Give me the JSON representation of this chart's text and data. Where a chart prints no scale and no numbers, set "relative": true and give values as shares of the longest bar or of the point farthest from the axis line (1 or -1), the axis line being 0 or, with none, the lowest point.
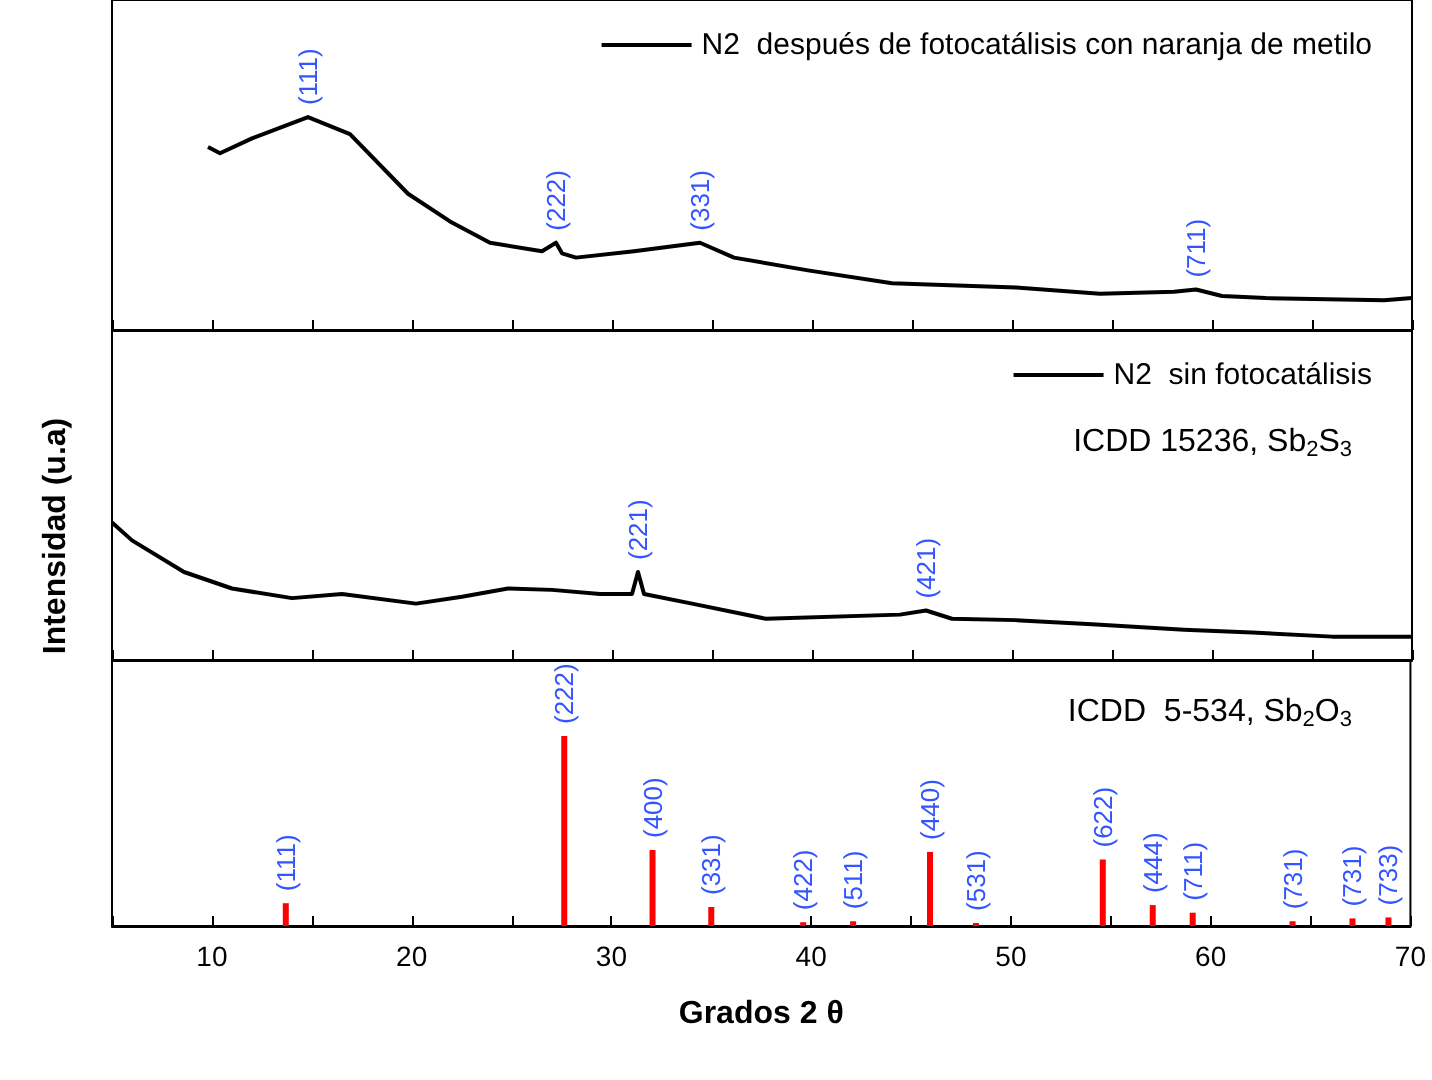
{
  "chart_data": [
    {
      "type": "line",
      "relative": true,
      "xlim": [
        5,
        70
      ],
      "xticks": [
        10,
        20,
        30,
        40,
        50,
        60,
        70
      ],
      "tick_labels": false,
      "legend": "top right",
      "x": [
        9.8,
        10.4,
        12,
        14.8,
        16.9,
        19.8,
        21.9,
        23.9,
        26.5,
        27.2,
        27.5,
        28.2,
        31.1,
        34.4,
        36.1,
        39.8,
        44,
        50.2,
        54.4,
        58.1,
        59.2,
        60.5,
        62.7,
        68.6,
        70
      ],
      "series": [
        {
          "name": "N2  después de fotocatálisis con naranja de metilo",
          "color": "#000000",
          "values": [
            0.86,
            0.83,
            0.9,
            1,
            0.92,
            0.64,
            0.51,
            0.41,
            0.37,
            0.41,
            0.36,
            0.34,
            0.37,
            0.41,
            0.34,
            0.28,
            0.22,
            0.2,
            0.17,
            0.18,
            0.19,
            0.16,
            0.15,
            0.14,
            0.15
          ]
        }
      ],
      "annotations": [
        {
          "text": "(111)",
          "x": 14.8,
          "y": 1
        },
        {
          "text": "(222)",
          "x": 27.2,
          "y": 0.41
        },
        {
          "text": "(331)",
          "x": 34.4,
          "y": 0.41
        },
        {
          "text": "(711)",
          "x": 59.2,
          "y": 0.19
        }
      ]
    },
    {
      "type": "line",
      "relative": true,
      "xlim": [
        5,
        70
      ],
      "xticks": [
        10,
        20,
        30,
        40,
        50,
        60,
        70
      ],
      "tick_labels": false,
      "legend": "top right",
      "ylabel": "Intensidad (u.a)",
      "x": [
        5,
        6,
        8.6,
        11,
        14,
        16.5,
        20.2,
        22.5,
        24.8,
        27,
        29.4,
        31,
        31.3,
        31.6,
        34,
        37.7,
        44.4,
        45.7,
        47,
        50.2,
        54,
        58.6,
        62,
        66,
        68.6,
        70
      ],
      "series": [
        {
          "name": "N2  sin fotocatálisis",
          "color": "#000000",
          "values": [
            1,
            0.87,
            0.64,
            0.52,
            0.45,
            0.48,
            0.41,
            0.46,
            0.52,
            0.51,
            0.48,
            0.48,
            0.64,
            0.48,
            0.41,
            0.3,
            0.33,
            0.36,
            0.3,
            0.29,
            0.26,
            0.22,
            0.2,
            0.17,
            0.17,
            0.17
          ]
        }
      ],
      "annotations": [
        "ICDD 15236, Sb$_{2}$S$_{3}$",
        {
          "text": "(221)",
          "x": 31.3,
          "y": 0.64
        },
        {
          "text": "(421)",
          "x": 45.7,
          "y": 0.36
        }
      ]
    },
    {
      "type": "bar",
      "relative": true,
      "xlim": [
        5,
        70
      ],
      "xticks": [
        10,
        20,
        30,
        40,
        50,
        60,
        70
      ],
      "tick_labels": "x",
      "xlabel": "Grados 2 θ",
      "x": [
        13.7,
        27.64,
        32.06,
        35.0,
        39.6,
        42.1,
        45.95,
        48.25,
        54.6,
        57.1,
        59.1,
        64.1,
        67.1,
        68.9
      ],
      "series": [
        {
          "color": "#ff0000",
          "values": [
            0.12,
            1,
            0.4,
            0.1,
            0.02,
            0.025,
            0.39,
            0.016,
            0.35,
            0.11,
            0.07,
            0.025,
            0.04,
            0.045
          ]
        }
      ],
      "annotations": [
        "ICDD  5-534, Sb$_{2}$O$_{3}$",
        {
          "text": "(111)",
          "x": 13.7,
          "y": 0.12
        },
        {
          "text": "(222)",
          "x": 27.64,
          "y": 1
        },
        {
          "text": "(400)",
          "x": 32.06,
          "y": 0.4
        },
        {
          "text": "(331)",
          "x": 35.0,
          "y": 0.1
        },
        {
          "text": "(422)",
          "x": 39.6,
          "y": 0.02
        },
        {
          "text": "(511)",
          "x": 42.1,
          "y": 0.025
        },
        {
          "text": "(440)",
          "x": 45.95,
          "y": 0.39
        },
        {
          "text": "(531)",
          "x": 48.25,
          "y": 0.016
        },
        {
          "text": "(622)",
          "x": 54.6,
          "y": 0.35
        },
        {
          "text": "(444)",
          "x": 57.1,
          "y": 0.11
        },
        {
          "text": "(711)",
          "x": 59.1,
          "y": 0.07
        },
        {
          "text": "(731)",
          "x": 64.1,
          "y": 0.025
        },
        {
          "text": "(731)",
          "x": 67.1,
          "y": 0.04
        },
        {
          "text": "(733)",
          "x": 68.9,
          "y": 0.045
        }
      ]
    }
  ]
}
